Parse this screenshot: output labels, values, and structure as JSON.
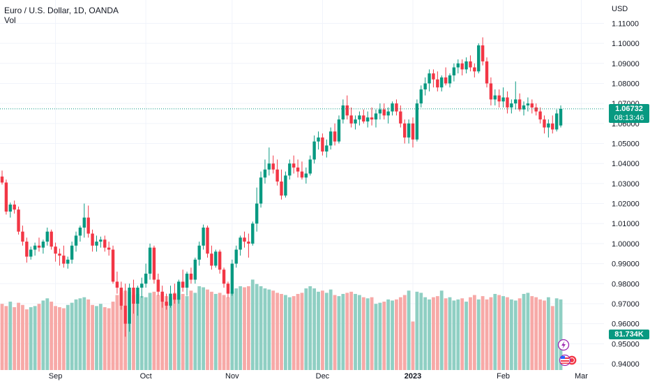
{
  "header": {
    "symbol_line": "Euro / U.S. Dollar, 1D, OANDA",
    "volume_label": "Vol"
  },
  "price_axis": {
    "currency": "USD",
    "last_price": "1.06732",
    "countdown": "08:13:46",
    "volume_value": "81.734K"
  },
  "colors": {
    "up": "#089981",
    "down": "#f23645",
    "up_volume": "#8fcfc3",
    "down_volume": "#f7a9a7",
    "grid": "#f0f3fa",
    "last_line": "#089981"
  },
  "icons": [
    "lightning-icon",
    "us-flag-icon",
    "eu-flag-icon"
  ],
  "chart_data": {
    "type": "candlestick",
    "title": "Euro / U.S. Dollar, 1D, OANDA",
    "ylabel": "USD",
    "ylim": [
      0.938,
      1.115
    ],
    "y_ticks": [
      0.94,
      0.95,
      0.96,
      0.97,
      0.98,
      0.99,
      1.0,
      1.01,
      1.02,
      1.03,
      1.04,
      1.05,
      1.06,
      1.07,
      1.08,
      1.09,
      1.1,
      1.11
    ],
    "y_tick_labels": [
      "0.94000",
      "0.95000",
      "0.96000",
      "0.97000",
      "0.98000",
      "0.99000",
      "1.00000",
      "1.01000",
      "1.02000",
      "1.03000",
      "1.04000",
      "1.05000",
      "1.06000",
      "1.07000",
      "1.08000",
      "1.09000",
      "1.10000",
      "1.11000"
    ],
    "x_labels": [
      "Sep",
      "Oct",
      "Nov",
      "Dec",
      "2023",
      "Feb",
      "Mar"
    ],
    "x_label_index": [
      13,
      35,
      56,
      78,
      100,
      122,
      141
    ],
    "grid": true,
    "last_price": 1.06732,
    "volume_series": "Vol",
    "ohlc": [
      [
        1.0335,
        1.0365,
        1.0295,
        1.0305
      ],
      [
        1.0305,
        1.032,
        1.0145,
        1.016
      ],
      [
        1.016,
        1.0205,
        1.013,
        1.0195
      ],
      [
        1.0195,
        1.0215,
        1.015,
        1.017
      ],
      [
        1.017,
        1.0185,
        1.0045,
        1.006
      ],
      [
        1.006,
        1.009,
        0.999,
        1.001
      ],
      [
        1.001,
        1.003,
        0.9905,
        0.9935
      ],
      [
        0.9935,
        0.9985,
        0.992,
        0.997
      ],
      [
        0.997,
        1.0005,
        0.994,
        0.999
      ],
      [
        0.999,
        1.003,
        0.996,
        0.998
      ],
      [
        0.998,
        1.002,
        0.995,
        1.001
      ],
      [
        1.001,
        1.008,
        0.999,
        1.006
      ],
      [
        1.006,
        1.007,
        0.997,
        0.9985
      ],
      [
        0.9985,
        1.0005,
        0.991,
        0.995
      ],
      [
        0.995,
        0.9975,
        0.989,
        0.994
      ],
      [
        0.994,
        0.999,
        0.988,
        0.99
      ],
      [
        0.99,
        0.9935,
        0.9875,
        0.992
      ],
      [
        0.992,
        1.001,
        0.99,
        0.999
      ],
      [
        0.999,
        1.006,
        0.996,
        1.004
      ],
      [
        1.004,
        1.009,
        1.001,
        1.008
      ],
      [
        1.008,
        1.02,
        1.003,
        1.013
      ],
      [
        1.013,
        1.019,
        1.003,
        1.005
      ],
      [
        1.005,
        1.007,
        0.996,
        0.999
      ],
      [
        0.999,
        1.004,
        0.996,
        1.001
      ],
      [
        1.001,
        1.0035,
        0.998,
        1.002
      ],
      [
        1.002,
        1.004,
        0.996,
        0.998
      ],
      [
        0.998,
        1.001,
        0.994,
        0.997
      ],
      [
        0.997,
        0.999,
        0.98,
        0.981
      ],
      [
        0.981,
        0.986,
        0.975,
        0.978
      ],
      [
        0.978,
        0.981,
        0.967,
        0.969
      ],
      [
        0.969,
        0.98,
        0.9535,
        0.96
      ],
      [
        0.96,
        0.98,
        0.956,
        0.978
      ],
      [
        0.978,
        0.982,
        0.965,
        0.97
      ],
      [
        0.97,
        0.979,
        0.964,
        0.978
      ],
      [
        0.978,
        0.983,
        0.973,
        0.98
      ],
      [
        0.98,
        0.99,
        0.978,
        0.985
      ],
      [
        0.985,
        1.0,
        0.982,
        0.998
      ],
      [
        0.998,
        0.999,
        0.98,
        0.982
      ],
      [
        0.982,
        0.985,
        0.974,
        0.976
      ],
      [
        0.976,
        0.979,
        0.968,
        0.971
      ],
      [
        0.971,
        0.975,
        0.967,
        0.969
      ],
      [
        0.969,
        0.979,
        0.968,
        0.975
      ],
      [
        0.975,
        0.98,
        0.97,
        0.972
      ],
      [
        0.972,
        0.982,
        0.97,
        0.981
      ],
      [
        0.981,
        0.987,
        0.976,
        0.978
      ],
      [
        0.978,
        0.986,
        0.974,
        0.985
      ],
      [
        0.985,
        0.988,
        0.98,
        0.982
      ],
      [
        0.982,
        0.993,
        0.98,
        0.992
      ],
      [
        0.992,
        1.001,
        0.989,
        0.999
      ],
      [
        0.999,
        1.0095,
        0.997,
        1.008
      ],
      [
        1.008,
        1.009,
        0.993,
        0.995
      ],
      [
        0.995,
        0.999,
        0.987,
        0.989
      ],
      [
        0.989,
        0.997,
        0.988,
        0.996
      ],
      [
        0.996,
        0.997,
        0.985,
        0.987
      ],
      [
        0.987,
        0.988,
        0.978,
        0.98
      ],
      [
        0.98,
        0.981,
        0.973,
        0.975
      ],
      [
        0.975,
        0.992,
        0.974,
        0.99
      ],
      [
        0.99,
        0.999,
        0.988,
        0.997
      ],
      [
        0.997,
        1.004,
        0.994,
        1.003
      ],
      [
        1.003,
        1.006,
        0.998,
        1.001
      ],
      [
        1.001,
        1.005,
        0.993,
        1.0
      ],
      [
        1.0,
        1.011,
        0.999,
        1.01
      ],
      [
        1.01,
        1.028,
        1.006,
        1.02
      ],
      [
        1.02,
        1.036,
        1.018,
        1.033
      ],
      [
        1.033,
        1.042,
        1.03,
        1.037
      ],
      [
        1.037,
        1.048,
        1.034,
        1.04
      ],
      [
        1.04,
        1.044,
        1.035,
        1.037
      ],
      [
        1.037,
        1.042,
        1.029,
        1.031
      ],
      [
        1.031,
        1.037,
        1.022,
        1.024
      ],
      [
        1.024,
        1.036,
        1.023,
        1.034
      ],
      [
        1.034,
        1.042,
        1.032,
        1.04
      ],
      [
        1.04,
        1.044,
        1.035,
        1.038
      ],
      [
        1.038,
        1.042,
        1.033,
        1.036
      ],
      [
        1.036,
        1.041,
        1.032,
        1.033
      ],
      [
        1.033,
        1.038,
        1.03,
        1.035
      ],
      [
        1.035,
        1.044,
        1.034,
        1.042
      ],
      [
        1.042,
        1.054,
        1.04,
        1.051
      ],
      [
        1.051,
        1.056,
        1.047,
        1.053
      ],
      [
        1.053,
        1.055,
        1.044,
        1.046
      ],
      [
        1.046,
        1.052,
        1.043,
        1.049
      ],
      [
        1.049,
        1.058,
        1.047,
        1.056
      ],
      [
        1.056,
        1.06,
        1.049,
        1.051
      ],
      [
        1.051,
        1.064,
        1.05,
        1.062
      ],
      [
        1.062,
        1.072,
        1.06,
        1.069
      ],
      [
        1.069,
        1.074,
        1.062,
        1.064
      ],
      [
        1.064,
        1.068,
        1.058,
        1.06
      ],
      [
        1.06,
        1.064,
        1.057,
        1.062
      ],
      [
        1.062,
        1.066,
        1.059,
        1.064
      ],
      [
        1.064,
        1.067,
        1.06,
        1.061
      ],
      [
        1.061,
        1.066,
        1.058,
        1.063
      ],
      [
        1.063,
        1.068,
        1.059,
        1.062
      ],
      [
        1.062,
        1.067,
        1.058,
        1.065
      ],
      [
        1.065,
        1.07,
        1.062,
        1.067
      ],
      [
        1.067,
        1.07,
        1.062,
        1.064
      ],
      [
        1.064,
        1.068,
        1.06,
        1.066
      ],
      [
        1.066,
        1.071,
        1.064,
        1.07
      ],
      [
        1.07,
        1.072,
        1.064,
        1.066
      ],
      [
        1.066,
        1.069,
        1.058,
        1.06
      ],
      [
        1.06,
        1.062,
        1.05,
        1.053
      ],
      [
        1.053,
        1.062,
        1.05,
        1.06
      ],
      [
        1.06,
        1.063,
        1.048,
        1.052
      ],
      [
        1.052,
        1.072,
        1.051,
        1.07
      ],
      [
        1.07,
        1.079,
        1.068,
        1.077
      ],
      [
        1.077,
        1.083,
        1.074,
        1.08
      ],
      [
        1.08,
        1.087,
        1.076,
        1.085
      ],
      [
        1.085,
        1.087,
        1.078,
        1.082
      ],
      [
        1.082,
        1.086,
        1.076,
        1.078
      ],
      [
        1.078,
        1.084,
        1.076,
        1.083
      ],
      [
        1.083,
        1.088,
        1.079,
        1.08
      ],
      [
        1.08,
        1.085,
        1.078,
        1.084
      ],
      [
        1.084,
        1.09,
        1.081,
        1.088
      ],
      [
        1.088,
        1.092,
        1.085,
        1.09
      ],
      [
        1.09,
        1.092,
        1.084,
        1.087
      ],
      [
        1.087,
        1.093,
        1.085,
        1.091
      ],
      [
        1.091,
        1.094,
        1.086,
        1.088
      ],
      [
        1.088,
        1.09,
        1.083,
        1.086
      ],
      [
        1.086,
        1.1,
        1.085,
        1.099
      ],
      [
        1.099,
        1.103,
        1.089,
        1.091
      ],
      [
        1.091,
        1.093,
        1.078,
        1.08
      ],
      [
        1.08,
        1.083,
        1.069,
        1.072
      ],
      [
        1.072,
        1.077,
        1.069,
        1.074
      ],
      [
        1.074,
        1.077,
        1.068,
        1.071
      ],
      [
        1.071,
        1.078,
        1.068,
        1.073
      ],
      [
        1.073,
        1.076,
        1.065,
        1.068
      ],
      [
        1.068,
        1.072,
        1.065,
        1.07
      ],
      [
        1.07,
        1.081,
        1.067,
        1.072
      ],
      [
        1.072,
        1.075,
        1.066,
        1.067
      ],
      [
        1.067,
        1.071,
        1.064,
        1.069
      ],
      [
        1.069,
        1.073,
        1.066,
        1.07
      ],
      [
        1.07,
        1.072,
        1.065,
        1.068
      ],
      [
        1.068,
        1.07,
        1.064,
        1.066
      ],
      [
        1.066,
        1.068,
        1.06,
        1.062
      ],
      [
        1.062,
        1.064,
        1.055,
        1.058
      ],
      [
        1.058,
        1.062,
        1.053,
        1.06
      ],
      [
        1.06,
        1.064,
        1.055,
        1.057
      ],
      [
        1.057,
        1.067,
        1.056,
        1.065
      ],
      [
        1.059,
        1.069,
        1.058,
        1.0673
      ]
    ],
    "volume": [
      60,
      58,
      62,
      57,
      61,
      59,
      55,
      57,
      58,
      60,
      63,
      65,
      62,
      58,
      57,
      56,
      59,
      61,
      64,
      65,
      66,
      64,
      59,
      58,
      60,
      57,
      56,
      62,
      68,
      70,
      72,
      71,
      68,
      69,
      67,
      66,
      70,
      71,
      68,
      69,
      67,
      66,
      70,
      68,
      69,
      67,
      72,
      70,
      76,
      75,
      73,
      71,
      69,
      70,
      68,
      66,
      71,
      74,
      76,
      75,
      76,
      82,
      78,
      76,
      74,
      73,
      72,
      70,
      69,
      68,
      66,
      67,
      69,
      70,
      74,
      76,
      74,
      71,
      72,
      70,
      73,
      68,
      67,
      69,
      70,
      71,
      69,
      68,
      66,
      65,
      66,
      60,
      61,
      62,
      64,
      63,
      64,
      66,
      68,
      72,
      44,
      71,
      70,
      66,
      64,
      66,
      67,
      72,
      65,
      66,
      63,
      64,
      65,
      62,
      66,
      68,
      64,
      67,
      64,
      66,
      69,
      68,
      67,
      66,
      64,
      63,
      65,
      69,
      70,
      67,
      66,
      64,
      63,
      66,
      58,
      65,
      64,
      66,
      65,
      63,
      52
    ]
  }
}
